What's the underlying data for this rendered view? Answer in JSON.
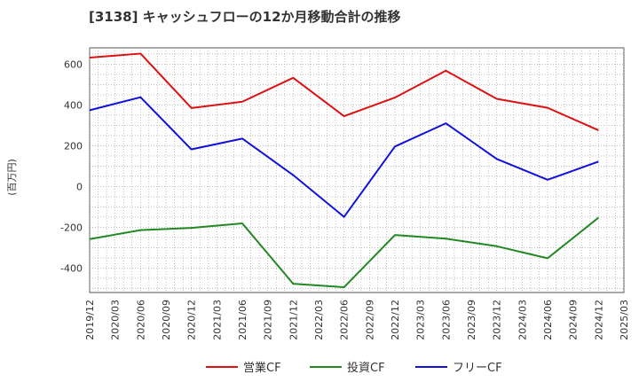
{
  "chart_data": {
    "type": "line",
    "title": "[3138]  キャッシュフローの12か月移動合計の推移",
    "ylabel": "(百万円)",
    "xlabel": "",
    "ylim": [
      -520,
      680
    ],
    "yticks": [
      -400,
      -200,
      0,
      200,
      400,
      600
    ],
    "categories": [
      "2019/12",
      "2020/03",
      "2020/06",
      "2020/09",
      "2020/12",
      "2021/03",
      "2021/06",
      "2021/09",
      "2021/12",
      "2022/03",
      "2022/06",
      "2022/09",
      "2022/12",
      "2023/03",
      "2023/06",
      "2023/09",
      "2023/12",
      "2024/03",
      "2024/06",
      "2024/09",
      "2024/12",
      "2025/03"
    ],
    "grid": true,
    "legend_position": "bottom",
    "series": [
      {
        "name": "営業CF",
        "color": "#dd1111",
        "points": [
          [
            "2019/12",
            632
          ],
          [
            "2020/06",
            652
          ],
          [
            "2020/12",
            385
          ],
          [
            "2021/06",
            416
          ],
          [
            "2021/12",
            533
          ],
          [
            "2022/06",
            345
          ],
          [
            "2022/12",
            436
          ],
          [
            "2023/06",
            568
          ],
          [
            "2023/12",
            430
          ],
          [
            "2024/06",
            386
          ],
          [
            "2024/12",
            276
          ]
        ]
      },
      {
        "name": "投資CF",
        "color": "#228822",
        "points": [
          [
            "2019/12",
            -258
          ],
          [
            "2020/06",
            -214
          ],
          [
            "2020/12",
            -203
          ],
          [
            "2021/06",
            -181
          ],
          [
            "2021/12",
            -477
          ],
          [
            "2022/06",
            -494
          ],
          [
            "2022/12",
            -238
          ],
          [
            "2023/06",
            -256
          ],
          [
            "2023/12",
            -293
          ],
          [
            "2024/06",
            -352
          ],
          [
            "2024/12",
            -153
          ]
        ]
      },
      {
        "name": "フリーCF",
        "color": "#1111dd",
        "points": [
          [
            "2019/12",
            374
          ],
          [
            "2020/06",
            438
          ],
          [
            "2020/12",
            182
          ],
          [
            "2021/06",
            235
          ],
          [
            "2021/12",
            56
          ],
          [
            "2022/06",
            -149
          ],
          [
            "2022/12",
            196
          ],
          [
            "2023/06",
            310
          ],
          [
            "2023/12",
            135
          ],
          [
            "2024/06",
            33
          ],
          [
            "2024/12",
            122
          ]
        ]
      }
    ]
  }
}
